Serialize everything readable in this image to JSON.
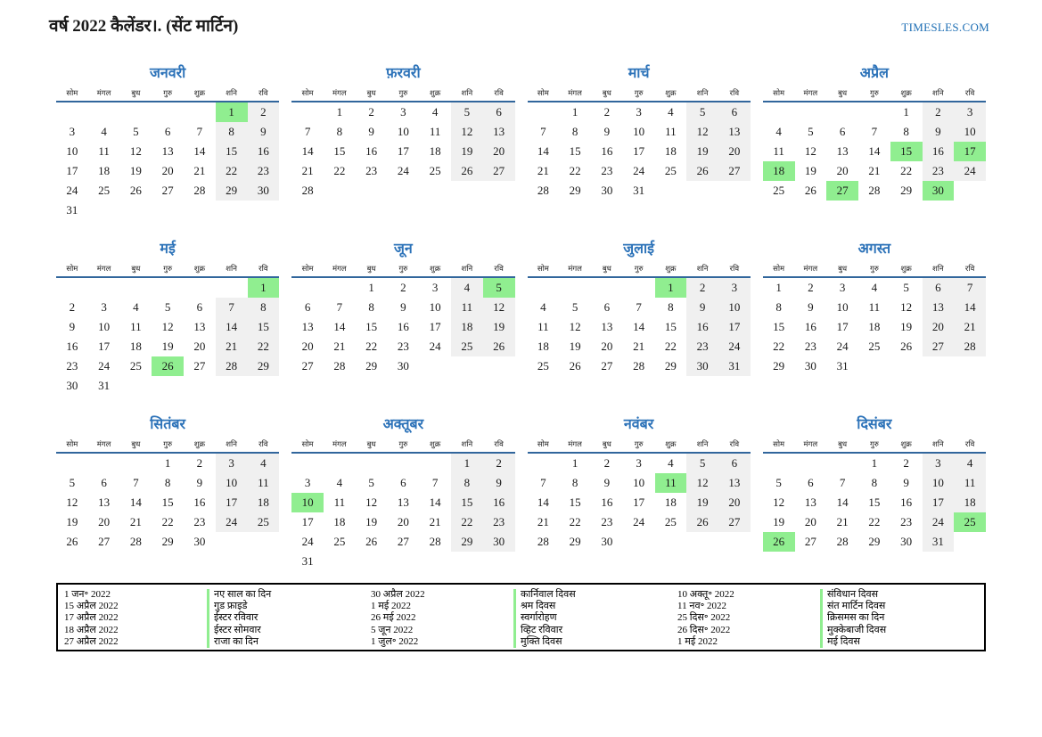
{
  "header": {
    "title": "वर्ष 2022 कैलेंडर।. (सेंट मार्टिन)",
    "site": "TIMESLES.COM"
  },
  "day_headers": [
    "सोम",
    "मंगल",
    "बुध",
    "गुरु",
    "शुक्र",
    "शनि",
    "रवि"
  ],
  "months": [
    {
      "name": "जनवरी",
      "holidays": [
        1
      ],
      "weeks": [
        [
          "",
          "",
          "",
          "",
          "",
          1,
          2
        ],
        [
          3,
          4,
          5,
          6,
          7,
          8,
          9
        ],
        [
          10,
          11,
          12,
          13,
          14,
          15,
          16
        ],
        [
          17,
          18,
          19,
          20,
          21,
          22,
          23
        ],
        [
          24,
          25,
          26,
          27,
          28,
          29,
          30
        ],
        [
          31,
          "",
          "",
          "",
          "",
          "",
          ""
        ]
      ]
    },
    {
      "name": "फ़रवरी",
      "holidays": [],
      "weeks": [
        [
          "",
          1,
          2,
          3,
          4,
          5,
          6
        ],
        [
          7,
          8,
          9,
          10,
          11,
          12,
          13
        ],
        [
          14,
          15,
          16,
          17,
          18,
          19,
          20
        ],
        [
          21,
          22,
          23,
          24,
          25,
          26,
          27
        ],
        [
          28,
          "",
          "",
          "",
          "",
          "",
          ""
        ]
      ]
    },
    {
      "name": "मार्च",
      "holidays": [],
      "weeks": [
        [
          "",
          1,
          2,
          3,
          4,
          5,
          6
        ],
        [
          7,
          8,
          9,
          10,
          11,
          12,
          13
        ],
        [
          14,
          15,
          16,
          17,
          18,
          19,
          20
        ],
        [
          21,
          22,
          23,
          24,
          25,
          26,
          27
        ],
        [
          28,
          29,
          30,
          31,
          "",
          "",
          ""
        ]
      ]
    },
    {
      "name": "अप्रैल",
      "holidays": [
        15,
        17,
        18,
        27,
        30
      ],
      "weeks": [
        [
          "",
          "",
          "",
          "",
          1,
          2,
          3
        ],
        [
          4,
          5,
          6,
          7,
          8,
          9,
          10
        ],
        [
          11,
          12,
          13,
          14,
          15,
          16,
          17
        ],
        [
          18,
          19,
          20,
          21,
          22,
          23,
          24
        ],
        [
          25,
          26,
          27,
          28,
          29,
          30,
          ""
        ]
      ]
    },
    {
      "name": "मई",
      "holidays": [
        1,
        26
      ],
      "weeks": [
        [
          "",
          "",
          "",
          "",
          "",
          "",
          1
        ],
        [
          2,
          3,
          4,
          5,
          6,
          7,
          8
        ],
        [
          9,
          10,
          11,
          12,
          13,
          14,
          15
        ],
        [
          16,
          17,
          18,
          19,
          20,
          21,
          22
        ],
        [
          23,
          24,
          25,
          26,
          27,
          28,
          29
        ],
        [
          30,
          31,
          "",
          "",
          "",
          "",
          ""
        ]
      ]
    },
    {
      "name": "जून",
      "holidays": [
        5
      ],
      "weeks": [
        [
          "",
          "",
          1,
          2,
          3,
          4,
          5
        ],
        [
          6,
          7,
          8,
          9,
          10,
          11,
          12
        ],
        [
          13,
          14,
          15,
          16,
          17,
          18,
          19
        ],
        [
          20,
          21,
          22,
          23,
          24,
          25,
          26
        ],
        [
          27,
          28,
          29,
          30,
          "",
          "",
          ""
        ]
      ]
    },
    {
      "name": "जुलाई",
      "holidays": [
        1
      ],
      "weeks": [
        [
          "",
          "",
          "",
          "",
          1,
          2,
          3
        ],
        [
          4,
          5,
          6,
          7,
          8,
          9,
          10
        ],
        [
          11,
          12,
          13,
          14,
          15,
          16,
          17
        ],
        [
          18,
          19,
          20,
          21,
          22,
          23,
          24
        ],
        [
          25,
          26,
          27,
          28,
          29,
          30,
          31
        ]
      ]
    },
    {
      "name": "अगस्त",
      "holidays": [],
      "weeks": [
        [
          1,
          2,
          3,
          4,
          5,
          6,
          7
        ],
        [
          8,
          9,
          10,
          11,
          12,
          13,
          14
        ],
        [
          15,
          16,
          17,
          18,
          19,
          20,
          21
        ],
        [
          22,
          23,
          24,
          25,
          26,
          27,
          28
        ],
        [
          29,
          30,
          31,
          "",
          "",
          "",
          ""
        ]
      ]
    },
    {
      "name": "सितंबर",
      "holidays": [],
      "weeks": [
        [
          "",
          "",
          "",
          1,
          2,
          3,
          4
        ],
        [
          5,
          6,
          7,
          8,
          9,
          10,
          11
        ],
        [
          12,
          13,
          14,
          15,
          16,
          17,
          18
        ],
        [
          19,
          20,
          21,
          22,
          23,
          24,
          25
        ],
        [
          26,
          27,
          28,
          29,
          30,
          "",
          ""
        ]
      ]
    },
    {
      "name": "अक्तूबर",
      "holidays": [
        10
      ],
      "weeks": [
        [
          "",
          "",
          "",
          "",
          "",
          1,
          2
        ],
        [
          3,
          4,
          5,
          6,
          7,
          8,
          9
        ],
        [
          10,
          11,
          12,
          13,
          14,
          15,
          16
        ],
        [
          17,
          18,
          19,
          20,
          21,
          22,
          23
        ],
        [
          24,
          25,
          26,
          27,
          28,
          29,
          30
        ],
        [
          31,
          "",
          "",
          "",
          "",
          "",
          ""
        ]
      ]
    },
    {
      "name": "नवंबर",
      "holidays": [
        11
      ],
      "weeks": [
        [
          "",
          1,
          2,
          3,
          4,
          5,
          6
        ],
        [
          7,
          8,
          9,
          10,
          11,
          12,
          13
        ],
        [
          14,
          15,
          16,
          17,
          18,
          19,
          20
        ],
        [
          21,
          22,
          23,
          24,
          25,
          26,
          27
        ],
        [
          28,
          29,
          30,
          "",
          "",
          "",
          ""
        ]
      ]
    },
    {
      "name": "दिसंबर",
      "holidays": [
        25,
        26
      ],
      "weeks": [
        [
          "",
          "",
          "",
          1,
          2,
          3,
          4
        ],
        [
          5,
          6,
          7,
          8,
          9,
          10,
          11
        ],
        [
          12,
          13,
          14,
          15,
          16,
          17,
          18
        ],
        [
          19,
          20,
          21,
          22,
          23,
          24,
          25
        ],
        [
          26,
          27,
          28,
          29,
          30,
          31,
          ""
        ]
      ]
    }
  ],
  "legend": {
    "columns": [
      [
        {
          "date": "1 जन॰ 2022",
          "name": "नए साल का दिन"
        },
        {
          "date": "15 अप्रैल 2022",
          "name": "गुड फ्राइडे"
        },
        {
          "date": "17 अप्रैल 2022",
          "name": "ईस्टर रविवार"
        },
        {
          "date": "18 अप्रैल 2022",
          "name": "ईस्टर सोमवार"
        },
        {
          "date": "27 अप्रैल 2022",
          "name": "राजा का दिन"
        }
      ],
      [
        {
          "date": "30 अप्रैल 2022",
          "name": "कार्निवाल दिवस"
        },
        {
          "date": "1 मई 2022",
          "name": "श्रम दिवस"
        },
        {
          "date": "26 मई 2022",
          "name": "स्वर्गारोहण"
        },
        {
          "date": "5 जून 2022",
          "name": "व्हिट रविवार"
        },
        {
          "date": "1 जुल॰ 2022",
          "name": "मुक्ति दिवस"
        }
      ],
      [
        {
          "date": "10 अक्तू॰ 2022",
          "name": "संविधान दिवस"
        },
        {
          "date": "11 नव॰ 2022",
          "name": "संत मार्टिन दिवस"
        },
        {
          "date": "25 दिस॰ 2022",
          "name": "क्रिसमस का दिन"
        },
        {
          "date": "26 दिस॰ 2022",
          "name": "मुक्केबाजी दिवस"
        },
        {
          "date": "1 मई 2022",
          "name": "मई दिवस"
        }
      ]
    ]
  },
  "colors": {
    "holiday_green": "#90ee90",
    "weekend_gray": "#f0f0f0",
    "title_blue": "#2d73b9",
    "line_blue": "#31669c",
    "link_blue": "#1d6eb4"
  }
}
